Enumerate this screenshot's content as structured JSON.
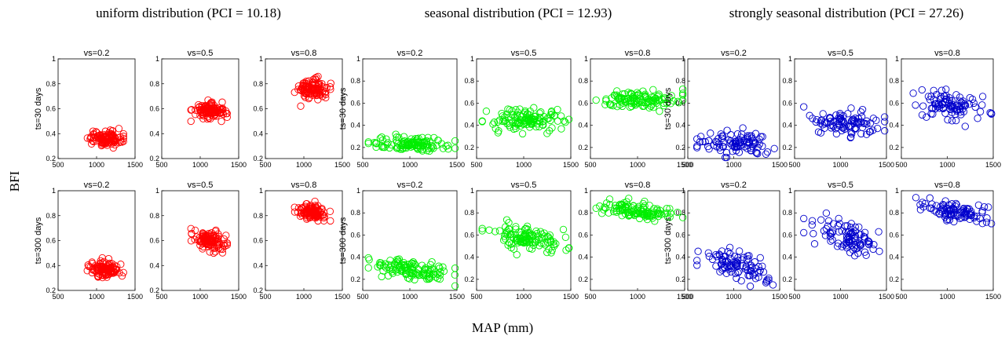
{
  "figure": {
    "ylabel": "BFI",
    "xlabel": "MAP (mm)"
  },
  "groups": [
    {
      "title": "uniform distribution (PCI = 10.18)",
      "color": "#ff0000",
      "ylim": [
        0.2,
        1
      ]
    },
    {
      "title": "seasonal distribution (PCI = 12.93)",
      "color": "#00ee00",
      "ylim": [
        0.1,
        1
      ]
    },
    {
      "title": "strongly seasonal distribution (PCI = 27.26)",
      "color": "#0000cc",
      "ylim": [
        0.1,
        1
      ]
    }
  ],
  "columns": [
    "vs=0.2",
    "vs=0.5",
    "vs=0.8"
  ],
  "rows": [
    "ts=30 days",
    "ts=300 days"
  ],
  "axes": {
    "xlim": [
      500,
      1500
    ],
    "xticks": [
      500,
      1000,
      1500
    ],
    "yticks_uniform": [
      0.2,
      0.4,
      0.6,
      0.8,
      1
    ],
    "yticks_seasonal": [
      0.2,
      0.4,
      0.6,
      0.8,
      1
    ],
    "ytick_labels_uniform": [
      "0.2",
      "0.4",
      "0.6",
      "0.8",
      "1"
    ],
    "ytick_labels_seasonal": [
      "0.2",
      "0.4",
      "0.6",
      "0.8",
      "1"
    ],
    "marker": "open-circle"
  },
  "chart_data": [
    {
      "type": "scatter",
      "group": "uniform",
      "vs": "vs=0.2",
      "ts": "ts=30 days",
      "map_range": [
        880,
        1350
      ],
      "bfi_mean": 0.36,
      "bfi_spread": 0.03,
      "slope": 0.0,
      "n": 110
    },
    {
      "type": "scatter",
      "group": "uniform",
      "vs": "vs=0.5",
      "ts": "ts=30 days",
      "map_range": [
        880,
        1350
      ],
      "bfi_mean": 0.58,
      "bfi_spread": 0.03,
      "slope": 0.0,
      "n": 110
    },
    {
      "type": "scatter",
      "group": "uniform",
      "vs": "vs=0.8",
      "ts": "ts=30 days",
      "map_range": [
        880,
        1350
      ],
      "bfi_mean": 0.76,
      "bfi_spread": 0.04,
      "slope": 0.0,
      "n": 110
    },
    {
      "type": "scatter",
      "group": "uniform",
      "vs": "vs=0.2",
      "ts": "ts=300 days",
      "map_range": [
        880,
        1350
      ],
      "bfi_mean": 0.37,
      "bfi_spread": 0.03,
      "slope": -8e-05,
      "n": 110
    },
    {
      "type": "scatter",
      "group": "uniform",
      "vs": "vs=0.5",
      "ts": "ts=300 days",
      "map_range": [
        880,
        1350
      ],
      "bfi_mean": 0.6,
      "bfi_spread": 0.04,
      "slope": -0.0002,
      "n": 110
    },
    {
      "type": "scatter",
      "group": "uniform",
      "vs": "vs=0.8",
      "ts": "ts=300 days",
      "map_range": [
        880,
        1350
      ],
      "bfi_mean": 0.83,
      "bfi_spread": 0.03,
      "slope": -0.0001,
      "n": 110
    },
    {
      "type": "scatter",
      "group": "seasonal",
      "vs": "vs=0.2",
      "ts": "ts=30 days",
      "map_range": [
        560,
        1480
      ],
      "bfi_mean": 0.23,
      "bfi_spread": 0.035,
      "slope": -3e-05,
      "n": 120
    },
    {
      "type": "scatter",
      "group": "seasonal",
      "vs": "vs=0.5",
      "ts": "ts=30 days",
      "map_range": [
        560,
        1480
      ],
      "bfi_mean": 0.45,
      "bfi_spread": 0.05,
      "slope": 0.0,
      "n": 120
    },
    {
      "type": "scatter",
      "group": "seasonal",
      "vs": "vs=0.8",
      "ts": "ts=30 days",
      "map_range": [
        560,
        1480
      ],
      "bfi_mean": 0.63,
      "bfi_spread": 0.04,
      "slope": 0.0,
      "n": 120
    },
    {
      "type": "scatter",
      "group": "seasonal",
      "vs": "vs=0.2",
      "ts": "ts=300 days",
      "map_range": [
        560,
        1480
      ],
      "bfi_mean": 0.28,
      "bfi_spread": 0.04,
      "slope": -0.00012,
      "n": 120
    },
    {
      "type": "scatter",
      "group": "seasonal",
      "vs": "vs=0.5",
      "ts": "ts=300 days",
      "map_range": [
        560,
        1480
      ],
      "bfi_mean": 0.57,
      "bfi_spread": 0.05,
      "slope": -0.00018,
      "n": 120
    },
    {
      "type": "scatter",
      "group": "seasonal",
      "vs": "vs=0.8",
      "ts": "ts=300 days",
      "map_range": [
        560,
        1480
      ],
      "bfi_mean": 0.82,
      "bfi_spread": 0.035,
      "slope": -8e-05,
      "n": 120
    },
    {
      "type": "scatter",
      "group": "strongly seasonal",
      "vs": "vs=0.2",
      "ts": "ts=30 days",
      "map_range": [
        600,
        1480
      ],
      "bfi_mean": 0.23,
      "bfi_spread": 0.05,
      "slope": -3e-05,
      "n": 95
    },
    {
      "type": "scatter",
      "group": "strongly seasonal",
      "vs": "vs=0.5",
      "ts": "ts=30 days",
      "map_range": [
        600,
        1480
      ],
      "bfi_mean": 0.42,
      "bfi_spread": 0.06,
      "slope": -5e-05,
      "n": 95
    },
    {
      "type": "scatter",
      "group": "strongly seasonal",
      "vs": "vs=0.8",
      "ts": "ts=30 days",
      "map_range": [
        600,
        1480
      ],
      "bfi_mean": 0.58,
      "bfi_spread": 0.06,
      "slope": -6e-05,
      "n": 95
    },
    {
      "type": "scatter",
      "group": "strongly seasonal",
      "vs": "vs=0.2",
      "ts": "ts=300 days",
      "map_range": [
        600,
        1480
      ],
      "bfi_mean": 0.32,
      "bfi_spread": 0.06,
      "slope": -0.00025,
      "n": 95
    },
    {
      "type": "scatter",
      "group": "strongly seasonal",
      "vs": "vs=0.5",
      "ts": "ts=300 days",
      "map_range": [
        600,
        1480
      ],
      "bfi_mean": 0.6,
      "bfi_spread": 0.07,
      "slope": -0.0003,
      "n": 95
    },
    {
      "type": "scatter",
      "group": "strongly seasonal",
      "vs": "vs=0.8",
      "ts": "ts=300 days",
      "map_range": [
        600,
        1480
      ],
      "bfi_mean": 0.82,
      "bfi_spread": 0.045,
      "slope": -0.00014,
      "n": 95
    }
  ]
}
